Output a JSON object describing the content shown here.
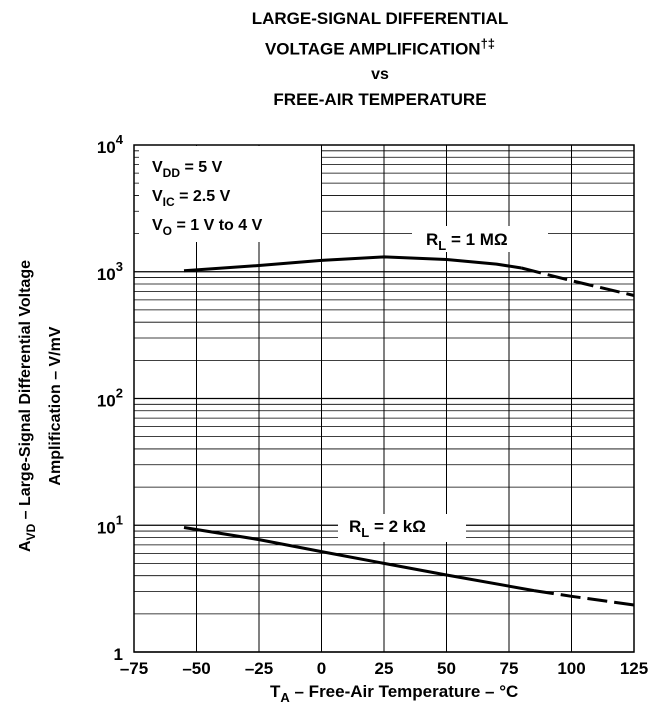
{
  "chart_data": {
    "type": "line",
    "title_lines": [
      "LARGE-SIGNAL DIFFERENTIAL",
      "VOLTAGE AMPLIFICATION",
      "vs",
      "FREE-AIR TEMPERATURE"
    ],
    "title_footnote": "†‡",
    "xlabel": {
      "main": "T",
      "sub": "A",
      "rest": " – Free-Air Temperature – °C"
    },
    "ylabel_line1": {
      "main": "A",
      "sub": "VD",
      "rest": " – Large-Signal Differential Voltage"
    },
    "ylabel_line2": "Amplification – V/mV",
    "x_ticks": [
      "–75",
      "–50",
      "–25",
      "0",
      "25",
      "50",
      "75",
      "100",
      "125"
    ],
    "x_tick_values": [
      -75,
      -50,
      -25,
      0,
      25,
      50,
      75,
      100,
      125
    ],
    "xlim": [
      -75,
      125
    ],
    "y_scale": "log",
    "ylim": [
      1,
      10000
    ],
    "y_ticks": [
      {
        "value": 1,
        "base": "1",
        "exp": ""
      },
      {
        "value": 10,
        "base": "10",
        "exp": "1"
      },
      {
        "value": 100,
        "base": "10",
        "exp": "2"
      },
      {
        "value": 1000,
        "base": "10",
        "exp": "3"
      },
      {
        "value": 10000,
        "base": "10",
        "exp": "4"
      }
    ],
    "grid": true,
    "conditions": [
      {
        "main": "V",
        "sub": "DD",
        "rest": " = 5 V"
      },
      {
        "main": "V",
        "sub": "IC",
        "rest": " = 2.5 V"
      },
      {
        "main": "V",
        "sub": "O",
        "rest": " = 1 V to 4 V"
      }
    ],
    "series": [
      {
        "name": {
          "main": "R",
          "sub": "L",
          "rest": " = 1 MΩ"
        },
        "solid": {
          "x": [
            -55,
            -25,
            0,
            25,
            50,
            70,
            80
          ],
          "y": [
            1020,
            1120,
            1230,
            1310,
            1250,
            1150,
            1070
          ]
        },
        "dashed": {
          "x": [
            80,
            100,
            125
          ],
          "y": [
            1070,
            850,
            650
          ]
        }
      },
      {
        "name": {
          "main": "R",
          "sub": "L",
          "rest": " = 2 kΩ"
        },
        "solid": {
          "x": [
            -55,
            -25,
            0,
            25,
            50,
            85
          ],
          "y": [
            9.6,
            7.7,
            6.2,
            5.0,
            4.05,
            3.05
          ]
        },
        "dashed": {
          "x": [
            85,
            100,
            125
          ],
          "y": [
            3.05,
            2.75,
            2.35
          ]
        }
      }
    ]
  }
}
